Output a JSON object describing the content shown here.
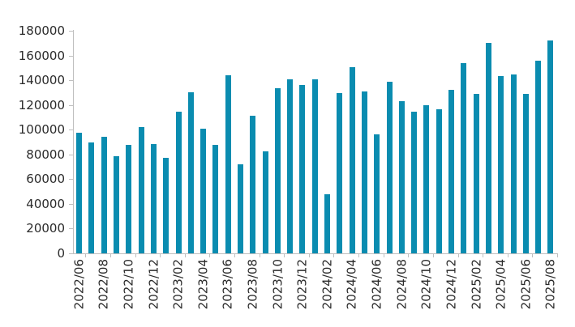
{
  "chart_data": {
    "type": "bar",
    "title": "",
    "xlabel": "",
    "ylabel": "",
    "categories": [
      "2022/06",
      "2022/07",
      "2022/08",
      "2022/09",
      "2022/10",
      "2022/11",
      "2022/12",
      "2023/01",
      "2023/02",
      "2023/03",
      "2023/04",
      "2023/05",
      "2023/06",
      "2023/07",
      "2023/08",
      "2023/09",
      "2023/10",
      "2023/11",
      "2023/12",
      "2024/01",
      "2024/02",
      "2024/03",
      "2024/04",
      "2024/05",
      "2024/06",
      "2024/07",
      "2024/08",
      "2024/09",
      "2024/10",
      "2024/11",
      "2024/12",
      "2025/01",
      "2025/02",
      "2025/03",
      "2025/04",
      "2025/05",
      "2025/06",
      "2025/07",
      "2025/08"
    ],
    "values": [
      97500,
      90000,
      94000,
      78500,
      88000,
      102000,
      88500,
      77000,
      114500,
      130000,
      101000,
      88000,
      144000,
      72000,
      111500,
      82500,
      133500,
      141000,
      136000,
      140500,
      48000,
      129500,
      150500,
      131000,
      96500,
      138500,
      123000,
      114500,
      120000,
      116500,
      132000,
      154000,
      129000,
      170000,
      143500,
      144500,
      129000,
      156000,
      172000
    ],
    "ylim": [
      0,
      180000
    ],
    "y_tick_step": 20000,
    "y_tick_labels": [
      "0",
      "20000",
      "40000",
      "60000",
      "80000",
      "100000",
      "120000",
      "140000",
      "160000",
      "180000"
    ],
    "x_label_every": 2,
    "grid": "off",
    "legend": "none"
  },
  "chart_style": {
    "bar_color": "#0a8cb0",
    "axis_color": "#bfbfbf",
    "text_color": "#2b2b2b",
    "background": "#ffffff"
  }
}
